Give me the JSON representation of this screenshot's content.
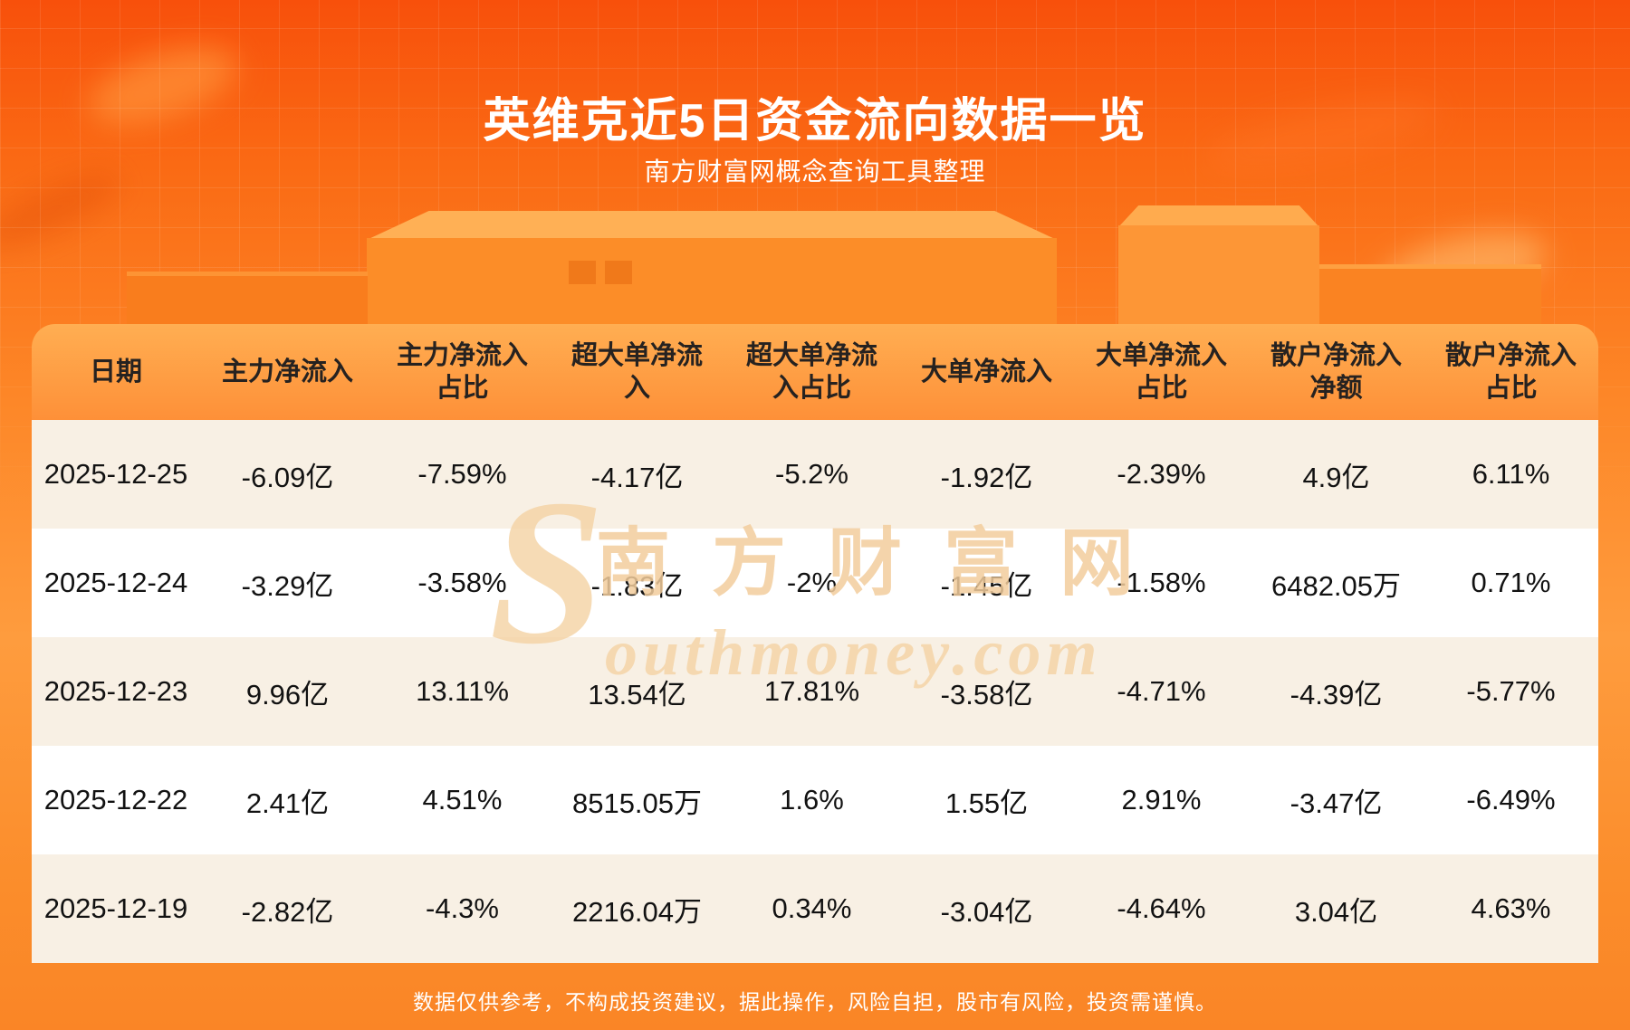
{
  "page": {
    "title": "英维克近5日资金流向数据一览",
    "subtitle": "南方财富网概念查询工具整理",
    "disclaimer": "数据仅供参考，不构成投资建议，据此操作，风险自担，股市有风险，投资需谨慎。"
  },
  "watermark": {
    "initial": "S",
    "cn": "南方财富网",
    "en": "outhmoney.com"
  },
  "chart_data": {
    "type": "table",
    "title": "英维克近5日资金流向数据一览",
    "columns": [
      "日期",
      "主力净流入",
      "主力净流入\n占比",
      "超大单净流\n入",
      "超大单净流\n入占比",
      "大单净流入",
      "大单净流入\n占比",
      "散户净流入\n净额",
      "散户净流入\n占比"
    ],
    "rows": [
      [
        "2025-12-25",
        "-6.09亿",
        "-7.59%",
        "-4.17亿",
        "-5.2%",
        "-1.92亿",
        "-2.39%",
        "4.9亿",
        "6.11%"
      ],
      [
        "2025-12-24",
        "-3.29亿",
        "-3.58%",
        "-1.83亿",
        "-2%",
        "-1.45亿",
        "-1.58%",
        "6482.05万",
        "0.71%"
      ],
      [
        "2025-12-23",
        "9.96亿",
        "13.11%",
        "13.54亿",
        "17.81%",
        "-3.58亿",
        "-4.71%",
        "-4.39亿",
        "-5.77%"
      ],
      [
        "2025-12-22",
        "2.41亿",
        "4.51%",
        "8515.05万",
        "1.6%",
        "1.55亿",
        "2.91%",
        "-3.47亿",
        "-6.49%"
      ],
      [
        "2025-12-19",
        "-2.82亿",
        "-4.3%",
        "2216.04万",
        "0.34%",
        "-3.04亿",
        "-4.64%",
        "3.04亿",
        "4.63%"
      ]
    ]
  },
  "colors": {
    "background_top": "#f8500b",
    "background_bottom": "#fa8526",
    "header_gradient_top": "#ffae52",
    "header_gradient_bottom": "#fe9038",
    "row_stripe": "#f8f0e4",
    "row_white": "#ffffff",
    "text_dark": "#121212",
    "text_white": "#ffffff",
    "watermark": "#f2cd9c"
  }
}
